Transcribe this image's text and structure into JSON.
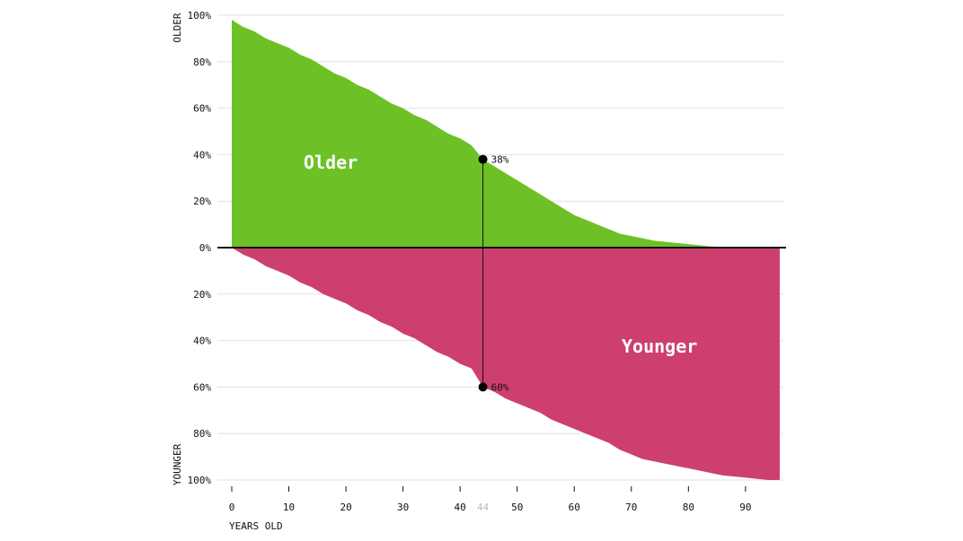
{
  "chart_data": {
    "type": "area",
    "title": "",
    "xlabel": "YEARS OLD",
    "ylabel_top": "OLDER",
    "ylabel_bottom": "YOUNGER",
    "xlim": [
      0,
      96
    ],
    "ylim": [
      -100,
      100
    ],
    "x_ticks": [
      0,
      10,
      20,
      30,
      40,
      50,
      60,
      70,
      80,
      90
    ],
    "y_ticks": [
      {
        "value": 100,
        "label": "100%"
      },
      {
        "value": 80,
        "label": "80%"
      },
      {
        "value": 60,
        "label": "60%"
      },
      {
        "value": 40,
        "label": "40%"
      },
      {
        "value": 20,
        "label": "20%"
      },
      {
        "value": 0,
        "label": "0%"
      },
      {
        "value": -20,
        "label": "20%"
      },
      {
        "value": -40,
        "label": "40%"
      },
      {
        "value": -60,
        "label": "60%"
      },
      {
        "value": -80,
        "label": "80%"
      },
      {
        "value": -100,
        "label": "100%"
      }
    ],
    "grid": true,
    "colors": {
      "older": "#6dc127",
      "younger": "#cd3f6f",
      "axis": "#111111",
      "grid": "#e2e2e2",
      "highlight": "#bbbbbb"
    },
    "x": [
      0,
      2,
      4,
      6,
      8,
      10,
      12,
      14,
      16,
      18,
      20,
      22,
      24,
      26,
      28,
      30,
      32,
      34,
      36,
      38,
      40,
      42,
      44,
      46,
      48,
      50,
      52,
      54,
      56,
      58,
      60,
      62,
      64,
      66,
      68,
      70,
      72,
      74,
      76,
      78,
      80,
      82,
      84,
      86,
      88,
      90,
      92,
      94,
      96
    ],
    "series": [
      {
        "name": "Older",
        "values": [
          98,
          95,
          93,
          90,
          88,
          86,
          83,
          81,
          78,
          75,
          73,
          70,
          68,
          65,
          62,
          60,
          57,
          55,
          52,
          49,
          47,
          44,
          38,
          35,
          32,
          29,
          26,
          23,
          20,
          17,
          14,
          12,
          10,
          8,
          6,
          5,
          4,
          3,
          2.5,
          2,
          1.5,
          1,
          0.5,
          0.3,
          0,
          0,
          0,
          0,
          0
        ]
      },
      {
        "name": "Younger",
        "values": [
          0,
          3,
          5,
          8,
          10,
          12,
          15,
          17,
          20,
          22,
          24,
          27,
          29,
          32,
          34,
          37,
          39,
          42,
          45,
          47,
          50,
          52,
          60,
          62,
          65,
          67,
          69,
          71,
          74,
          76,
          78,
          80,
          82,
          84,
          87,
          89,
          91,
          92,
          93,
          94,
          95,
          96,
          97,
          98,
          98.5,
          99,
          99.5,
          100,
          100
        ]
      }
    ],
    "area_labels": {
      "older": "Older",
      "younger": "Younger"
    },
    "marker": {
      "x": 44,
      "x_label": "44",
      "older_value": 38,
      "older_label": "38%",
      "younger_value": 60,
      "younger_label": "60%"
    }
  }
}
